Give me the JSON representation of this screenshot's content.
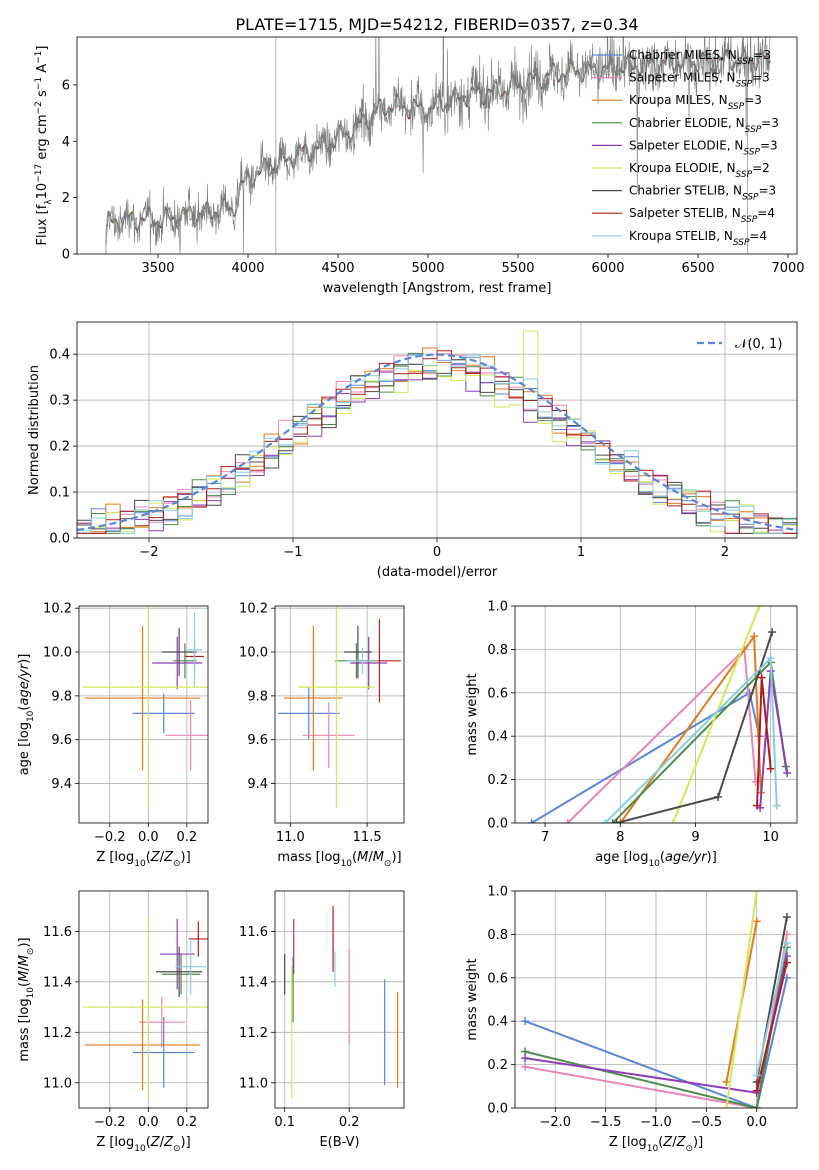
{
  "figure_title": "PLATE=1715, MJD=54212, FIBERID=0357, z=0.34",
  "colors": {
    "ChabrierMILES": "#5b86d6",
    "SalpeterMILES": "#e886b8",
    "KroupaMILES": "#e07a1f",
    "ChabrierELODIE": "#4f8a4f",
    "SalpeterELODIE": "#8e3fb5",
    "KroupaELODIE": "#d4e85a",
    "ChabrierSTELIB": "#4a4a4a",
    "SalpeterSTELIB": "#b01e1e",
    "KroupaSTELIB": "#88d0dd",
    "observed": "#7a7a7a"
  },
  "chart_data": [
    {
      "id": "spectrum",
      "type": "line",
      "xlabel": "wavelength [Angstrom, rest frame]",
      "ylabel": "Flux [f",
      "xlim": [
        3050,
        7050
      ],
      "ylim": [
        0,
        7.7
      ],
      "xticks": [
        3500,
        4000,
        4500,
        5000,
        5500,
        6000,
        6500,
        7000
      ],
      "yticks": [
        0,
        2,
        4,
        6
      ],
      "legend_position": "top-right",
      "legend": [
        {
          "key": "ChabrierMILES",
          "label": "Chabrier MILES, N",
          "sub": "SSP",
          "tail": "=3"
        },
        {
          "key": "SalpeterMILES",
          "label": "Salpeter MILES, N",
          "sub": "SSP",
          "tail": "=3"
        },
        {
          "key": "KroupaMILES",
          "label": "Kroupa MILES, N",
          "sub": "SSP",
          "tail": "=3"
        },
        {
          "key": "ChabrierELODIE",
          "label": "Chabrier ELODIE, N",
          "sub": "SSP",
          "tail": "=3"
        },
        {
          "key": "SalpeterELODIE",
          "label": "Salpeter ELODIE, N",
          "sub": "SSP",
          "tail": "=3"
        },
        {
          "key": "KroupaELODIE",
          "label": "Kroupa ELODIE, N",
          "sub": "SSP",
          "tail": "=2"
        },
        {
          "key": "ChabrierSTELIB",
          "label": "Chabrier STELIB, N",
          "sub": "SSP",
          "tail": "=3"
        },
        {
          "key": "SalpeterSTELIB",
          "label": "Salpeter STELIB, N",
          "sub": "SSP",
          "tail": "=4"
        },
        {
          "key": "KroupaSTELIB",
          "label": "Kroupa STELIB, N",
          "sub": "SSP",
          "tail": "=4"
        }
      ],
      "continuum": [
        [
          3210,
          0
        ],
        [
          3220,
          1.1
        ],
        [
          3300,
          1.2
        ],
        [
          3450,
          1.25
        ],
        [
          3550,
          1.2
        ],
        [
          3650,
          1.4
        ],
        [
          3750,
          1.4
        ],
        [
          3850,
          1.6
        ],
        [
          3920,
          1.6
        ],
        [
          3950,
          2.2
        ],
        [
          4000,
          2.7
        ],
        [
          4100,
          3.0
        ],
        [
          4200,
          3.3
        ],
        [
          4300,
          3.6
        ],
        [
          4400,
          3.8
        ],
        [
          4500,
          4.1
        ],
        [
          4600,
          4.5
        ],
        [
          4700,
          5.0
        ],
        [
          4800,
          5.3
        ],
        [
          4900,
          5.2
        ],
        [
          5000,
          5.1
        ],
        [
          5100,
          5.4
        ],
        [
          5200,
          5.6
        ],
        [
          5300,
          5.7
        ],
        [
          5400,
          5.8
        ],
        [
          5500,
          6.0
        ],
        [
          5600,
          6.2
        ],
        [
          5700,
          6.4
        ],
        [
          5800,
          6.5
        ],
        [
          5900,
          6.5
        ],
        [
          6000,
          6.6
        ],
        [
          6200,
          6.7
        ],
        [
          6400,
          6.8
        ],
        [
          6600,
          6.85
        ],
        [
          6800,
          6.9
        ],
        [
          6900,
          6.9
        ]
      ],
      "spectrum_xrange": [
        3210,
        6900
      ]
    },
    {
      "id": "residuals",
      "type": "line",
      "xlabel": "(data-model)/error",
      "ylabel": "Normed distribution",
      "xlim": [
        -2.5,
        2.5
      ],
      "ylim": [
        0,
        0.47
      ],
      "xticks": [
        -2,
        -1,
        0,
        1,
        2
      ],
      "yticks": [
        0.0,
        0.1,
        0.2,
        0.3,
        0.4
      ],
      "legend_position": "top-right",
      "legend_label": "𝒩(0, 1)",
      "normal_mean": 0,
      "normal_sigma": 1,
      "bin_width": 0.1,
      "bin_start": -2.5
    },
    {
      "id": "age_vs_Z",
      "type": "scatter",
      "xlabel": "Z [log",
      "ylabel": "age  [log",
      "xlim": [
        -0.36,
        0.31
      ],
      "ylim": [
        9.22,
        10.21
      ],
      "xticks": [
        -0.2,
        0.0,
        0.2
      ],
      "yticks": [
        9.4,
        9.6,
        9.8,
        10.0,
        10.2
      ],
      "points": [
        {
          "key": "ChabrierMILES",
          "x": 0.08,
          "xerr": 0.16,
          "y": 9.72,
          "yerr": 0.09
        },
        {
          "key": "SalpeterMILES",
          "x": 0.22,
          "xerr": 0.13,
          "y": 9.62,
          "yerr": 0.16
        },
        {
          "key": "KroupaMILES",
          "x": -0.03,
          "xerr": 0.3,
          "y": 9.79,
          "yerr": 0.33
        },
        {
          "key": "ChabrierELODIE",
          "x": 0.19,
          "xerr": 0.06,
          "y": 9.96,
          "yerr": 0.08
        },
        {
          "key": "SalpeterELODIE",
          "x": 0.15,
          "xerr": 0.13,
          "y": 9.95,
          "yerr": 0.12
        },
        {
          "key": "KroupaELODIE",
          "x": 0.0,
          "xerr": 0.34,
          "y": 9.84,
          "yerr": 0.55
        },
        {
          "key": "ChabrierSTELIB",
          "x": 0.16,
          "xerr": 0.09,
          "y": 10.0,
          "yerr": 0.11
        },
        {
          "key": "SalpeterSTELIB",
          "x": 0.24,
          "xerr": 0.05,
          "y": 9.98,
          "yerr": 0.07
        },
        {
          "key": "KroupaSTELIB",
          "x": 0.24,
          "xerr": 0.04,
          "y": 10.01,
          "yerr": 0.17
        }
      ]
    },
    {
      "id": "age_vs_mass",
      "type": "scatter",
      "xlabel": "mass [log",
      "ylabel": "",
      "xlim": [
        10.9,
        11.74
      ],
      "ylim": [
        9.22,
        10.21
      ],
      "xticks": [
        11.0,
        11.5
      ],
      "yticks": [
        9.4,
        9.6,
        9.8,
        10.0,
        10.2
      ],
      "points": [
        {
          "key": "ChabrierMILES",
          "x": 11.12,
          "xerr": 0.2,
          "y": 9.72,
          "yerr": 0.12
        },
        {
          "key": "SalpeterMILES",
          "x": 11.25,
          "xerr": 0.17,
          "y": 9.62,
          "yerr": 0.15
        },
        {
          "key": "KroupaMILES",
          "x": 11.15,
          "xerr": 0.19,
          "y": 9.79,
          "yerr": 0.33
        },
        {
          "key": "ChabrierELODIE",
          "x": 11.43,
          "xerr": 0.14,
          "y": 9.96,
          "yerr": 0.08
        },
        {
          "key": "SalpeterELODIE",
          "x": 11.51,
          "xerr": 0.12,
          "y": 9.95,
          "yerr": 0.12
        },
        {
          "key": "KroupaELODIE",
          "x": 11.3,
          "xerr": 0.25,
          "y": 9.84,
          "yerr": 0.55
        },
        {
          "key": "ChabrierSTELIB",
          "x": 11.44,
          "xerr": 0.09,
          "y": 10.0,
          "yerr": 0.12
        },
        {
          "key": "SalpeterSTELIB",
          "x": 11.58,
          "xerr": 0.14,
          "y": 9.96,
          "yerr": 0.19
        },
        {
          "key": "KroupaSTELIB",
          "x": 11.47,
          "xerr": 0.1,
          "y": 9.96,
          "yerr": 0.06
        }
      ]
    },
    {
      "id": "mass_weight_vs_age",
      "type": "line",
      "xlabel": "age  [log",
      "ylabel": "mass weight",
      "xlim": [
        6.6,
        10.35
      ],
      "ylim": [
        0,
        1.0
      ],
      "xticks": [
        7,
        8,
        9,
        10
      ],
      "yticks": [
        0.0,
        0.2,
        0.4,
        0.6,
        0.8,
        1.0
      ],
      "series": [
        {
          "key": "ChabrierMILES",
          "x": [
            6.82,
            9.72,
            9.85
          ],
          "y": [
            0.0,
            0.6,
            0.4
          ]
        },
        {
          "key": "SalpeterMILES",
          "x": [
            7.3,
            9.65,
            9.8
          ],
          "y": [
            0.0,
            0.8,
            0.19
          ]
        },
        {
          "key": "KroupaMILES",
          "x": [
            8.0,
            9.78,
            9.87
          ],
          "y": [
            0.0,
            0.86,
            0.14
          ]
        },
        {
          "key": "ChabrierELODIE",
          "x": [
            7.9,
            10.0,
            10.2
          ],
          "y": [
            0.0,
            0.74,
            0.26
          ]
        },
        {
          "key": "SalpeterELODIE",
          "x": [
            9.86,
            10.0,
            10.22
          ],
          "y": [
            0.07,
            0.7,
            0.23
          ]
        },
        {
          "key": "KroupaELODIE",
          "x": [
            8.7,
            9.85
          ],
          "y": [
            0.0,
            1.0
          ]
        },
        {
          "key": "ChabrierSTELIB",
          "x": [
            7.95,
            9.3,
            10.02
          ],
          "y": [
            0.0,
            0.12,
            0.88
          ]
        },
        {
          "key": "SalpeterSTELIB",
          "x": [
            9.82,
            9.88,
            10.0
          ],
          "y": [
            0.08,
            0.67,
            0.25
          ]
        },
        {
          "key": "KroupaSTELIB",
          "x": [
            7.8,
            10.0,
            10.08
          ],
          "y": [
            0.0,
            0.76,
            0.08
          ]
        }
      ]
    },
    {
      "id": "mass_vs_Z",
      "type": "scatter",
      "xlabel": "Z [log",
      "ylabel": "mass [log",
      "xlim": [
        -0.36,
        0.31
      ],
      "ylim": [
        10.9,
        11.76
      ],
      "xticks": [
        -0.2,
        0.0,
        0.2
      ],
      "yticks": [
        11.0,
        11.2,
        11.4,
        11.6
      ],
      "points": [
        {
          "key": "ChabrierMILES",
          "x": 0.08,
          "xerr": 0.16,
          "y": 11.12,
          "yerr": 0.14
        },
        {
          "key": "SalpeterMILES",
          "x": 0.07,
          "xerr": 0.12,
          "y": 11.24,
          "yerr": 0.1
        },
        {
          "key": "KroupaMILES",
          "x": -0.03,
          "xerr": 0.3,
          "y": 11.15,
          "yerr": 0.18
        },
        {
          "key": "ChabrierELODIE",
          "x": 0.17,
          "xerr": 0.1,
          "y": 11.43,
          "yerr": 0.08
        },
        {
          "key": "SalpeterELODIE",
          "x": 0.15,
          "xerr": 0.09,
          "y": 11.51,
          "yerr": 0.14
        },
        {
          "key": "KroupaELODIE",
          "x": 0.0,
          "xerr": 0.34,
          "y": 11.3,
          "yerr": 0.36
        },
        {
          "key": "ChabrierSTELIB",
          "x": 0.16,
          "xerr": 0.12,
          "y": 11.44,
          "yerr": 0.1
        },
        {
          "key": "SalpeterSTELIB",
          "x": 0.26,
          "xerr": 0.05,
          "y": 11.57,
          "yerr": 0.07
        },
        {
          "key": "KroupaSTELIB",
          "x": 0.22,
          "xerr": 0.08,
          "y": 11.46,
          "yerr": 0.11
        }
      ]
    },
    {
      "id": "mass_vs_EBV",
      "type": "scatter",
      "xlabel": "E(B-V)",
      "ylabel": "",
      "xlim": [
        0.085,
        0.285
      ],
      "ylim": [
        10.9,
        11.76
      ],
      "xticks": [
        0.1,
        0.2
      ],
      "yticks": [
        11.0,
        11.2,
        11.4,
        11.6
      ],
      "points": [
        {
          "key": "ChabrierMILES",
          "x": 0.255,
          "xerr": 0,
          "y": 11.2,
          "yerr": 0.21
        },
        {
          "key": "SalpeterMILES",
          "x": 0.2,
          "xerr": 0,
          "y": 11.34,
          "yerr": 0.19
        },
        {
          "key": "KroupaMILES",
          "x": 0.275,
          "xerr": 0,
          "y": 11.17,
          "yerr": 0.19
        },
        {
          "key": "ChabrierELODIE",
          "x": 0.113,
          "xerr": 0,
          "y": 11.37,
          "yerr": 0.13
        },
        {
          "key": "SalpeterELODIE",
          "x": 0.114,
          "xerr": 0,
          "y": 11.54,
          "yerr": 0.11
        },
        {
          "key": "KroupaELODIE",
          "x": 0.111,
          "xerr": 0,
          "y": 11.2,
          "yerr": 0.26
        },
        {
          "key": "ChabrierSTELIB",
          "x": 0.1,
          "xerr": 0,
          "y": 11.43,
          "yerr": 0.08
        },
        {
          "key": "SalpeterSTELIB",
          "x": 0.175,
          "xerr": 0,
          "y": 11.57,
          "yerr": 0.13
        },
        {
          "key": "KroupaSTELIB",
          "x": 0.178,
          "xerr": 0,
          "y": 11.45,
          "yerr": 0.07
        }
      ]
    },
    {
      "id": "mass_weight_vs_Z",
      "type": "line",
      "xlabel": "Z [log",
      "ylabel": "mass weight",
      "xlim": [
        -2.4,
        0.4
      ],
      "ylim": [
        0,
        1.0
      ],
      "xticks": [
        -2.0,
        -1.5,
        -1.0,
        -0.5,
        0.0
      ],
      "yticks": [
        0.0,
        0.2,
        0.4,
        0.6,
        0.8,
        1.0
      ],
      "series": [
        {
          "key": "ChabrierMILES",
          "x": [
            -2.3,
            0.0,
            0.3
          ],
          "y": [
            0.4,
            0.0,
            0.6
          ]
        },
        {
          "key": "SalpeterMILES",
          "x": [
            -2.3,
            0.0,
            0.3
          ],
          "y": [
            0.19,
            0.0,
            0.8
          ]
        },
        {
          "key": "KroupaMILES",
          "x": [
            -0.3,
            0.0
          ],
          "y": [
            0.12,
            0.86
          ]
        },
        {
          "key": "ChabrierELODIE",
          "x": [
            -2.3,
            0.0,
            0.3
          ],
          "y": [
            0.26,
            0.0,
            0.74
          ]
        },
        {
          "key": "SalpeterELODIE",
          "x": [
            -2.3,
            0.0,
            0.3
          ],
          "y": [
            0.23,
            0.07,
            0.7
          ]
        },
        {
          "key": "KroupaELODIE",
          "x": [
            -0.3,
            0.0
          ],
          "y": [
            0.0,
            1.0
          ]
        },
        {
          "key": "ChabrierSTELIB",
          "x": [
            0.0,
            0.3
          ],
          "y": [
            0.12,
            0.88
          ]
        },
        {
          "key": "SalpeterSTELIB",
          "x": [
            0.0,
            0.3
          ],
          "y": [
            0.08,
            0.67
          ]
        },
        {
          "key": "KroupaSTELIB",
          "x": [
            0.0,
            0.3
          ],
          "y": [
            0.15,
            0.76
          ]
        }
      ]
    }
  ]
}
